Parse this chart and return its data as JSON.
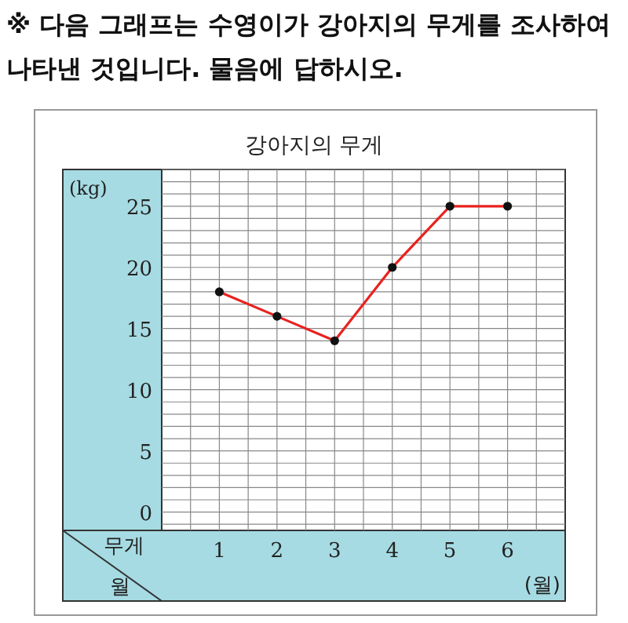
{
  "chart_data": {
    "type": "line",
    "title": "강아지의 무게",
    "ylabel": "(kg)",
    "xlabel": "(월)",
    "annotations": [
      "※ 다음 그래프는 수영이가 강아지의 무게를 조사하여 나타낸 것입니다. 물음에 답하시오.",
      "무게",
      "월"
    ],
    "categories": [
      "1",
      "2",
      "3",
      "4",
      "5",
      "6"
    ],
    "series": [
      {
        "color": "#e8231f",
        "values": [
          18,
          16,
          14,
          20,
          25,
          25
        ]
      }
    ],
    "ylim": [
      -1.5,
      28
    ],
    "yticks": [
      0,
      5,
      10,
      15,
      20,
      25
    ],
    "grid": true,
    "marker": "circle",
    "line_style": "solid"
  }
}
